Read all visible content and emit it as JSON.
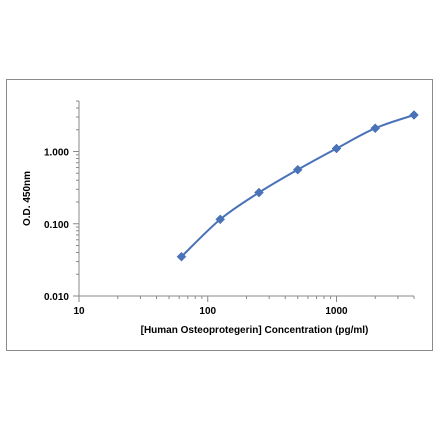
{
  "chart_data": {
    "type": "line",
    "title": "",
    "xlabel": "[Human Osteoprotegerin] Concentration (pg/ml)",
    "ylabel": "O.D. 450nm",
    "x_scale": "log",
    "y_scale": "log",
    "xlim": [
      10,
      4000
    ],
    "ylim": [
      0.01,
      5
    ],
    "x_tick_labels": [
      "10",
      "100",
      "1000"
    ],
    "y_tick_labels": [
      "0.010",
      "0.100",
      "1.000"
    ],
    "grid": false,
    "legend": "none",
    "series": [
      {
        "color": "#4a72b8",
        "marker": "diamond",
        "x": [
          62.5,
          125,
          250,
          500,
          1000,
          2000,
          4000
        ],
        "y": [
          0.035,
          0.115,
          0.27,
          0.56,
          1.1,
          2.1,
          3.2
        ]
      }
    ]
  }
}
